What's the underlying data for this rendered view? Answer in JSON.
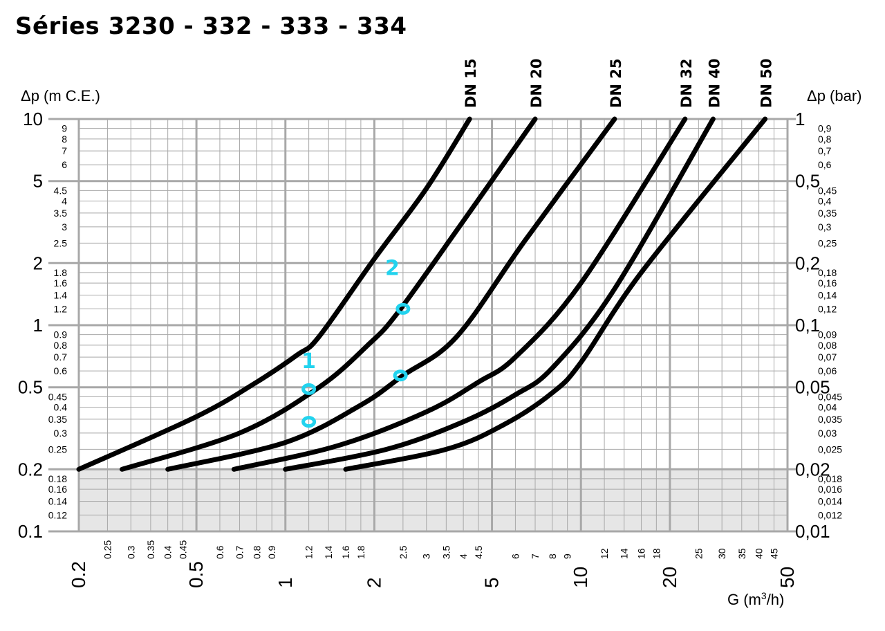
{
  "title": "Séries 3230 - 332 - 333 - 334",
  "chart_data": {
    "type": "line",
    "x_scale": "log",
    "y_scale": "log",
    "xlabel_prefix": "G (m",
    "xlabel_sup": "3",
    "xlabel_suffix": "/h)",
    "ylabel_left": "Δp (m C.E.)",
    "ylabel_right": "Δp (bar)",
    "xlim": [
      0.2,
      50
    ],
    "ylim": [
      0.1,
      10
    ],
    "shaded_region": {
      "y_from": 0.1,
      "y_to": 0.2
    },
    "x_major_ticks": [
      {
        "v": 0.2,
        "label": "0.2"
      },
      {
        "v": 0.5,
        "label": "0.5"
      },
      {
        "v": 1,
        "label": "1"
      },
      {
        "v": 2,
        "label": "2"
      },
      {
        "v": 5,
        "label": "5"
      },
      {
        "v": 10,
        "label": "10"
      },
      {
        "v": 20,
        "label": "20"
      },
      {
        "v": 50,
        "label": "50"
      }
    ],
    "x_minor_ticks": [
      {
        "v": 0.25,
        "label": "0.25"
      },
      {
        "v": 0.3,
        "label": "0.3"
      },
      {
        "v": 0.35,
        "label": "0.35"
      },
      {
        "v": 0.4,
        "label": "0.4"
      },
      {
        "v": 0.45,
        "label": "0.45"
      },
      {
        "v": 0.6,
        "label": "0.6"
      },
      {
        "v": 0.7,
        "label": "0.7"
      },
      {
        "v": 0.8,
        "label": "0.8"
      },
      {
        "v": 0.9,
        "label": "0.9"
      },
      {
        "v": 1.2,
        "label": "1.2"
      },
      {
        "v": 1.4,
        "label": "1.4"
      },
      {
        "v": 1.6,
        "label": "1.6"
      },
      {
        "v": 1.8,
        "label": "1.8"
      },
      {
        "v": 2.5,
        "label": "2.5"
      },
      {
        "v": 3,
        "label": "3"
      },
      {
        "v": 3.5,
        "label": "3.5"
      },
      {
        "v": 4,
        "label": "4"
      },
      {
        "v": 4.5,
        "label": "4.5"
      },
      {
        "v": 6,
        "label": "6"
      },
      {
        "v": 7,
        "label": "7"
      },
      {
        "v": 8,
        "label": "8"
      },
      {
        "v": 9,
        "label": "9"
      },
      {
        "v": 12,
        "label": "12"
      },
      {
        "v": 14,
        "label": "14"
      },
      {
        "v": 16,
        "label": "16"
      },
      {
        "v": 18,
        "label": "18"
      },
      {
        "v": 25,
        "label": "25"
      },
      {
        "v": 30,
        "label": "30"
      },
      {
        "v": 35,
        "label": "35"
      },
      {
        "v": 40,
        "label": "40"
      },
      {
        "v": 45,
        "label": "45"
      }
    ],
    "y_major_ticks": [
      {
        "v": 10,
        "left": "10",
        "right": "1"
      },
      {
        "v": 5,
        "left": "5",
        "right": "0,5"
      },
      {
        "v": 2,
        "left": "2",
        "right": "0,2"
      },
      {
        "v": 1,
        "left": "1",
        "right": "0,1"
      },
      {
        "v": 0.5,
        "left": "0.5",
        "right": "0,05"
      },
      {
        "v": 0.2,
        "left": "0.2",
        "right": "0,02"
      },
      {
        "v": 0.1,
        "left": "0.1",
        "right": "0,01"
      }
    ],
    "y_minor_ticks": [
      {
        "v": 9,
        "left": "9",
        "right": "0,9"
      },
      {
        "v": 8,
        "left": "8",
        "right": "0,8"
      },
      {
        "v": 7,
        "left": "7",
        "right": "0,7"
      },
      {
        "v": 6,
        "left": "6",
        "right": "0,6"
      },
      {
        "v": 4.5,
        "left": "4.5",
        "right": "0,45"
      },
      {
        "v": 4,
        "left": "4",
        "right": "0,4"
      },
      {
        "v": 3.5,
        "left": "3.5",
        "right": "0,35"
      },
      {
        "v": 3,
        "left": "3",
        "right": "0,3"
      },
      {
        "v": 2.5,
        "left": "2.5",
        "right": "0,25"
      },
      {
        "v": 1.8,
        "left": "1.8",
        "right": "0,18"
      },
      {
        "v": 1.6,
        "left": "1.6",
        "right": "0,16"
      },
      {
        "v": 1.4,
        "left": "1.4",
        "right": "0,14"
      },
      {
        "v": 1.2,
        "left": "1.2",
        "right": "0,12"
      },
      {
        "v": 0.9,
        "left": "0.9",
        "right": "0,09"
      },
      {
        "v": 0.8,
        "left": "0.8",
        "right": "0,08"
      },
      {
        "v": 0.7,
        "left": "0.7",
        "right": "0,07"
      },
      {
        "v": 0.6,
        "left": "0.6",
        "right": "0,06"
      },
      {
        "v": 0.45,
        "left": "0.45",
        "right": "0,045"
      },
      {
        "v": 0.4,
        "left": "0.4",
        "right": "0,04"
      },
      {
        "v": 0.35,
        "left": "0.35",
        "right": "0,035"
      },
      {
        "v": 0.3,
        "left": "0.3",
        "right": "0,03"
      },
      {
        "v": 0.25,
        "left": "0.25",
        "right": "0,025"
      },
      {
        "v": 0.18,
        "left": "0.18",
        "right": "0,018"
      },
      {
        "v": 0.16,
        "left": "0.16",
        "right": "0,016"
      },
      {
        "v": 0.14,
        "left": "0.14",
        "right": "0,014"
      },
      {
        "v": 0.12,
        "left": "0.12",
        "right": "0,012"
      }
    ],
    "series": [
      {
        "name": "DN 15",
        "points": [
          [
            0.2,
            0.2
          ],
          [
            0.5,
            0.36
          ],
          [
            0.8,
            0.53
          ],
          [
            1.1,
            0.72
          ],
          [
            1.3,
            0.88
          ],
          [
            2.0,
            2.1
          ],
          [
            3.0,
            4.6
          ],
          [
            4.2,
            10
          ]
        ]
      },
      {
        "name": "DN 20",
        "points": [
          [
            0.28,
            0.2
          ],
          [
            0.7,
            0.3
          ],
          [
            1.3,
            0.5
          ],
          [
            1.9,
            0.8
          ],
          [
            2.4,
            1.15
          ],
          [
            4.0,
            3.2
          ],
          [
            7.0,
            10
          ]
        ]
      },
      {
        "name": "DN 25",
        "points": [
          [
            0.4,
            0.2
          ],
          [
            1.0,
            0.27
          ],
          [
            1.8,
            0.41
          ],
          [
            2.5,
            0.57
          ],
          [
            3.8,
            0.88
          ],
          [
            6.5,
            2.6
          ],
          [
            13.0,
            10
          ]
        ]
      },
      {
        "name": "DN 32",
        "points": [
          [
            0.67,
            0.2
          ],
          [
            1.5,
            0.26
          ],
          [
            3.0,
            0.38
          ],
          [
            4.5,
            0.53
          ],
          [
            6.0,
            0.7
          ],
          [
            10.0,
            1.6
          ],
          [
            22.5,
            10
          ]
        ]
      },
      {
        "name": "DN 40",
        "points": [
          [
            1.0,
            0.2
          ],
          [
            2.2,
            0.25
          ],
          [
            4.0,
            0.34
          ],
          [
            6.0,
            0.46
          ],
          [
            8.0,
            0.62
          ],
          [
            13.0,
            1.5
          ],
          [
            28.0,
            10
          ]
        ]
      },
      {
        "name": "DN 50",
        "points": [
          [
            1.6,
            0.2
          ],
          [
            3.5,
            0.25
          ],
          [
            5.5,
            0.33
          ],
          [
            8.0,
            0.47
          ],
          [
            10.0,
            0.66
          ],
          [
            16.0,
            1.8
          ],
          [
            42.0,
            10
          ]
        ]
      }
    ],
    "annotations": [
      {
        "label": "1",
        "x": 1.2,
        "y": 0.62
      },
      {
        "label": "2",
        "x": 2.3,
        "y": 1.75
      }
    ],
    "markers": [
      {
        "x": 1.2,
        "y": 0.49
      },
      {
        "x": 1.2,
        "y": 0.34
      },
      {
        "x": 2.5,
        "y": 1.2
      },
      {
        "x": 2.45,
        "y": 0.57
      }
    ],
    "colors": {
      "curve": "#000000",
      "grid": "#a8a8a8",
      "shade": "#e6e6e6",
      "annotation": "#22d3ee"
    }
  }
}
